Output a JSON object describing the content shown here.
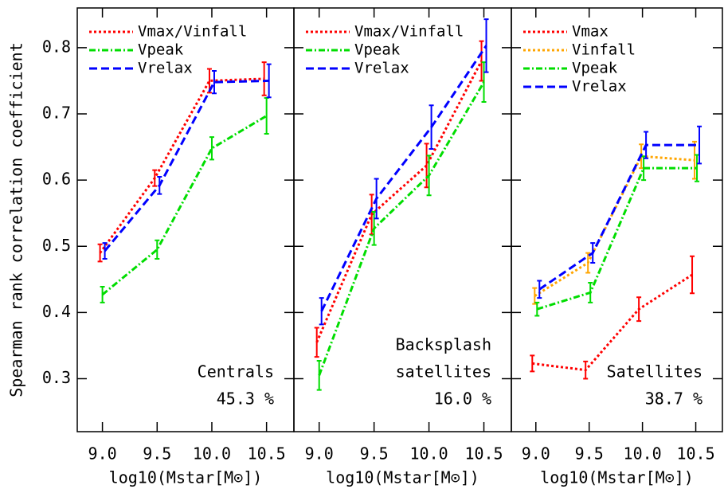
{
  "chart_data": [
    {
      "type": "line",
      "ylabel": "Spearman rank correlation coefficient",
      "xlabel": "log10(Mstar[M⊙])",
      "x": [
        9.0,
        9.5,
        10.0,
        10.5
      ],
      "xlim": [
        8.77,
        10.75
      ],
      "ylim": [
        0.22,
        0.86
      ],
      "xticks": [
        {
          "value": 9,
          "label": "9.0"
        },
        9.5,
        {
          "value": 10,
          "label": "10.0"
        },
        10.5
      ],
      "yticks": [
        0.3,
        0.4,
        0.5,
        0.6,
        0.7,
        0.8
      ],
      "ytick_labels": true,
      "annotation": [
        "Centrals",
        "45.3 %"
      ],
      "series": [
        {
          "name": "Vmax/Vinfall",
          "color": "#ff0000",
          "linestyle": "dotted",
          "values": [
            0.49,
            0.603,
            0.75,
            0.753
          ],
          "errors": [
            0.013,
            0.012,
            0.018,
            0.025
          ]
        },
        {
          "name": "Vpeak",
          "color": "#00dd00",
          "linestyle": "dash-dot",
          "values": [
            0.427,
            0.495,
            0.648,
            0.697
          ],
          "errors": [
            0.012,
            0.014,
            0.017,
            0.027
          ]
        },
        {
          "name": "Vrelax",
          "color": "#0000ff",
          "linestyle": "dashed",
          "values": [
            0.493,
            0.592,
            0.748,
            0.75
          ],
          "errors": [
            0.012,
            0.013,
            0.017,
            0.025
          ]
        }
      ]
    },
    {
      "type": "line",
      "xlabel": "log10(Mstar[M⊙])",
      "x": [
        9.0,
        9.5,
        10.0,
        10.5
      ],
      "xlim": [
        8.77,
        10.75
      ],
      "ylim": [
        0.22,
        0.86
      ],
      "xticks": [
        {
          "value": 9,
          "label": "9.0"
        },
        9.5,
        {
          "value": 10,
          "label": "10.0"
        },
        10.5
      ],
      "yticks": [
        0.3,
        0.4,
        0.5,
        0.6,
        0.7,
        0.8
      ],
      "ytick_labels": false,
      "annotation": [
        "Backsplash",
        "satellites",
        "16.0 %"
      ],
      "series": [
        {
          "name": "Vmax/Vinfall",
          "color": "#ff0000",
          "linestyle": "dotted",
          "values": [
            0.355,
            0.548,
            0.622,
            0.78
          ],
          "errors": [
            0.022,
            0.03,
            0.033,
            0.03
          ]
        },
        {
          "name": "Vpeak",
          "color": "#00dd00",
          "linestyle": "dash-dot",
          "values": [
            0.305,
            0.527,
            0.607,
            0.748
          ],
          "errors": [
            0.022,
            0.025,
            0.03,
            0.03
          ]
        },
        {
          "name": "Vrelax",
          "color": "#0000ff",
          "linestyle": "dashed",
          "values": [
            0.402,
            0.572,
            0.68,
            0.803
          ],
          "errors": [
            0.02,
            0.03,
            0.033,
            0.04
          ]
        }
      ]
    },
    {
      "type": "line",
      "xlabel": "log10(Mstar[M⊙])",
      "x": [
        9.0,
        9.5,
        10.0,
        10.5
      ],
      "xlim": [
        8.77,
        10.75
      ],
      "ylim": [
        0.22,
        0.86
      ],
      "xticks": [
        {
          "value": 9,
          "label": "9.0"
        },
        9.5,
        {
          "value": 10,
          "label": "10.0"
        },
        10.5
      ],
      "yticks": [
        0.3,
        0.4,
        0.5,
        0.6,
        0.7,
        0.8
      ],
      "ytick_labels": false,
      "annotation": [
        "Satellites",
        "38.7 %"
      ],
      "series": [
        {
          "name": "Vmax",
          "color": "#ff0000",
          "linestyle": "dotted",
          "values": [
            0.323,
            0.313,
            0.405,
            0.457
          ],
          "errors": [
            0.012,
            0.013,
            0.018,
            0.028
          ]
        },
        {
          "name": "Vinfall",
          "color": "#ffa500",
          "linestyle": "dotted",
          "values": [
            0.425,
            0.475,
            0.636,
            0.63
          ],
          "errors": [
            0.012,
            0.015,
            0.018,
            0.028
          ]
        },
        {
          "name": "Vpeak",
          "color": "#00dd00",
          "linestyle": "dash-dot",
          "values": [
            0.405,
            0.43,
            0.618,
            0.618
          ],
          "errors": [
            0.01,
            0.015,
            0.018,
            0.02
          ]
        },
        {
          "name": "Vrelax",
          "color": "#0000ff",
          "linestyle": "dashed",
          "values": [
            0.435,
            0.49,
            0.653,
            0.653
          ],
          "errors": [
            0.013,
            0.015,
            0.02,
            0.028
          ]
        }
      ]
    }
  ]
}
